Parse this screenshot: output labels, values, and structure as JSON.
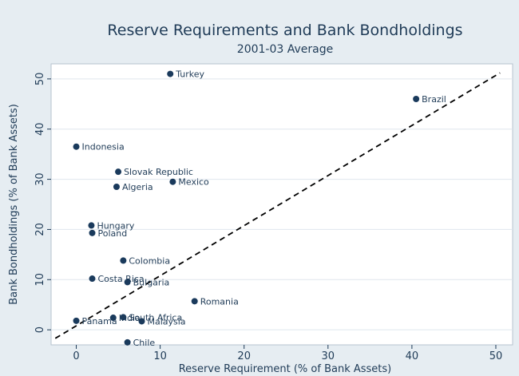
{
  "chart_data": {
    "type": "scatter",
    "title": "Reserve Requirements and Bank Bondholdings",
    "subtitle": "2001-03 Average",
    "xlabel": "Reserve Requirement (% of Bank Assets)",
    "ylabel": "Bank Bondholdings (% of Bank Assets)",
    "xlim": [
      -3,
      52
    ],
    "ylim": [
      -3,
      53
    ],
    "x_ticks": [
      0,
      10,
      20,
      30,
      40,
      50
    ],
    "y_ticks": [
      0,
      10,
      20,
      30,
      40,
      50
    ],
    "grid": "horizontal",
    "points": [
      {
        "label": "Turkey",
        "x": 11.2,
        "y": 51
      },
      {
        "label": "Brazil",
        "x": 40.5,
        "y": 46
      },
      {
        "label": "Indonesia",
        "x": 0,
        "y": 36.5
      },
      {
        "label": "Slovak Republic",
        "x": 5,
        "y": 31.5
      },
      {
        "label": "Mexico",
        "x": 11.5,
        "y": 29.5
      },
      {
        "label": "Algeria",
        "x": 4.8,
        "y": 28.5
      },
      {
        "label": "Hungary",
        "x": 1.8,
        "y": 20.8
      },
      {
        "label": "Poland",
        "x": 1.9,
        "y": 19.3
      },
      {
        "label": "Colombia",
        "x": 5.6,
        "y": 13.8
      },
      {
        "label": "Costa Rica",
        "x": 1.9,
        "y": 10.2
      },
      {
        "label": "Bulgaria",
        "x": 6.1,
        "y": 9.5
      },
      {
        "label": "Romania",
        "x": 14.1,
        "y": 5.7
      },
      {
        "label": "South Africa",
        "x": 5.6,
        "y": 2.5
      },
      {
        "label": "India",
        "x": 4.4,
        "y": 2.4
      },
      {
        "label": "Malaysia",
        "x": 7.8,
        "y": 1.7
      },
      {
        "label": "Panama",
        "x": 0,
        "y": 1.8
      },
      {
        "label": "Chile",
        "x": 6.1,
        "y": -2.5
      }
    ],
    "fit_line": {
      "x": [
        -2.5,
        50.5
      ],
      "y": [
        -1.7,
        51.2
      ]
    },
    "colors": {
      "marker": "#1a3a5c",
      "text": "#1f3b57",
      "plot_bg": "#ffffff",
      "page_bg": "#e6edf2",
      "grid": "#dfe6ee",
      "fit_line": "#000000"
    }
  }
}
